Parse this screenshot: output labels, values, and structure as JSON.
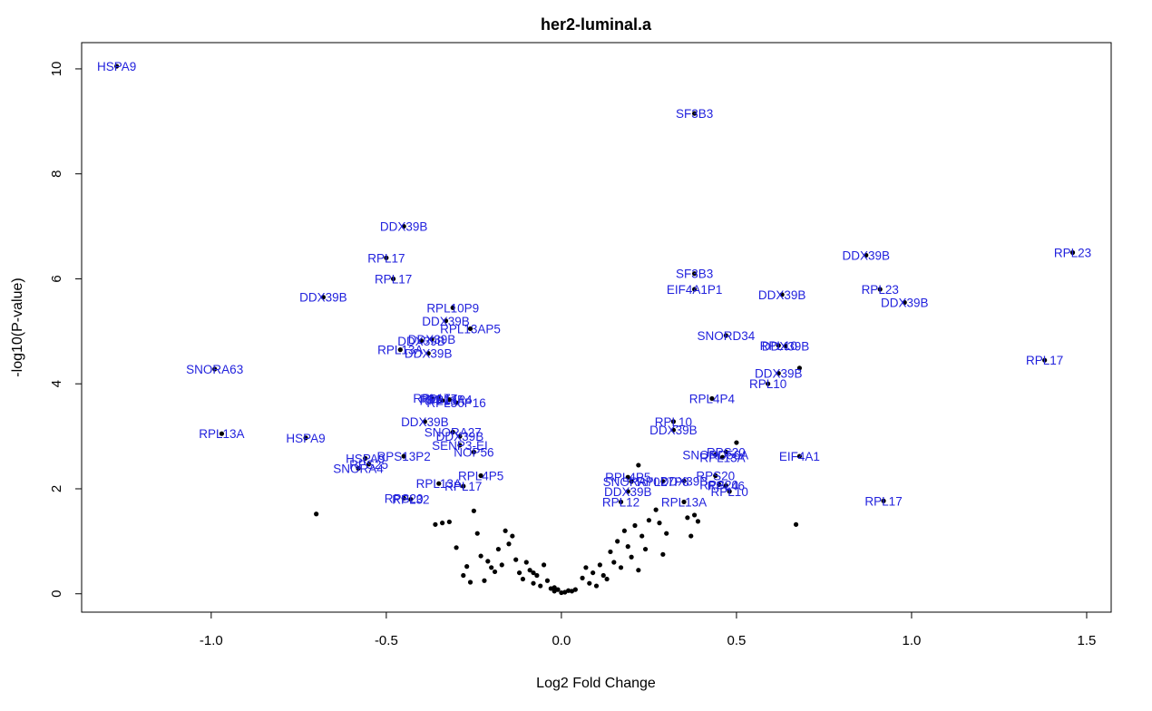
{
  "chart_data": {
    "type": "scatter",
    "title": "her2-luminal.a",
    "xlabel": "Log2 Fold Change",
    "ylabel": "-log10(P-value)",
    "xlim": [
      -1.37,
      1.57
    ],
    "ylim": [
      -0.35,
      10.5
    ],
    "xticks": [
      -1.0,
      -0.5,
      0.0,
      0.5,
      1.0,
      1.5
    ],
    "xtick_labels": [
      "-1.0",
      "-0.5",
      "0.0",
      "0.5",
      "1.0",
      "1.5"
    ],
    "yticks": [
      0,
      2,
      4,
      6,
      8,
      10
    ],
    "ytick_labels": [
      "0",
      "2",
      "4",
      "6",
      "8",
      "10"
    ],
    "grid": false,
    "colors": {
      "point": "#000000",
      "label": "#2222dd"
    },
    "labeled_points": [
      {
        "x": -1.27,
        "y": 10.05,
        "label": "HSPA9"
      },
      {
        "x": 0.38,
        "y": 9.15,
        "label": "SF3B3"
      },
      {
        "x": -0.45,
        "y": 7.0,
        "label": "DDX39B"
      },
      {
        "x": -0.5,
        "y": 6.4,
        "label": "RPL17"
      },
      {
        "x": -0.48,
        "y": 6.0,
        "label": "RPL17"
      },
      {
        "x": -0.68,
        "y": 5.65,
        "label": "DDX39B"
      },
      {
        "x": 0.38,
        "y": 6.1,
        "label": "SF3B3"
      },
      {
        "x": 0.38,
        "y": 5.8,
        "label": "EIF4A1P1"
      },
      {
        "x": 0.87,
        "y": 6.45,
        "label": "DDX39B"
      },
      {
        "x": 1.46,
        "y": 6.5,
        "label": "RPL23"
      },
      {
        "x": 0.91,
        "y": 5.8,
        "label": "RPL23"
      },
      {
        "x": 0.63,
        "y": 5.7,
        "label": "DDX39B"
      },
      {
        "x": 0.98,
        "y": 5.55,
        "label": "DDX39B"
      },
      {
        "x": -0.31,
        "y": 5.45,
        "label": "RPL10P9"
      },
      {
        "x": -0.33,
        "y": 5.2,
        "label": "DDX39B"
      },
      {
        "x": -0.26,
        "y": 5.05,
        "label": "RPL13AP5"
      },
      {
        "x": -0.37,
        "y": 4.85,
        "label": "DDX39B"
      },
      {
        "x": -0.4,
        "y": 4.82,
        "label": "DDX39B"
      },
      {
        "x": -0.46,
        "y": 4.65,
        "label": "RPL13A"
      },
      {
        "x": -0.38,
        "y": 4.58,
        "label": "DDX39B"
      },
      {
        "x": 0.47,
        "y": 4.92,
        "label": "SNORD34"
      },
      {
        "x": 0.62,
        "y": 4.73,
        "label": "RPL10"
      },
      {
        "x": 0.64,
        "y": 4.72,
        "label": "DDX39B"
      },
      {
        "x": 1.38,
        "y": 4.45,
        "label": "RPL17"
      },
      {
        "x": -0.99,
        "y": 4.28,
        "label": "SNORA63"
      },
      {
        "x": 0.62,
        "y": 4.2,
        "label": "DDX39B"
      },
      {
        "x": 0.59,
        "y": 4.0,
        "label": "RPL10"
      },
      {
        "x": -0.37,
        "y": 3.73,
        "label": "RPL17"
      },
      {
        "x": -0.35,
        "y": 3.72,
        "label": "RPL17"
      },
      {
        "x": -0.32,
        "y": 3.7,
        "label": "RPL4P4"
      },
      {
        "x": -0.34,
        "y": 3.68,
        "label": "RPL13A"
      },
      {
        "x": -0.3,
        "y": 3.64,
        "label": "RPL36P16"
      },
      {
        "x": 0.43,
        "y": 3.72,
        "label": "RPL4P4"
      },
      {
        "x": -0.39,
        "y": 3.28,
        "label": "DDX39B"
      },
      {
        "x": 0.32,
        "y": 3.28,
        "label": "RPL10"
      },
      {
        "x": 0.32,
        "y": 3.12,
        "label": "DDX39B"
      },
      {
        "x": -0.31,
        "y": 3.08,
        "label": "SNORA27"
      },
      {
        "x": -0.29,
        "y": 3.0,
        "label": "DDX39B"
      },
      {
        "x": -0.97,
        "y": 3.05,
        "label": "RPL13A"
      },
      {
        "x": -0.73,
        "y": 2.97,
        "label": "HSPA9"
      },
      {
        "x": -0.29,
        "y": 2.83,
        "label": "SENP3-EI"
      },
      {
        "x": -0.25,
        "y": 2.7,
        "label": "NOP56"
      },
      {
        "x": -0.45,
        "y": 2.62,
        "label": "RPS13P2"
      },
      {
        "x": -0.56,
        "y": 2.58,
        "label": "HSPA9"
      },
      {
        "x": -0.55,
        "y": 2.47,
        "label": "RPS25"
      },
      {
        "x": -0.58,
        "y": 2.39,
        "label": "SNORA4"
      },
      {
        "x": 0.47,
        "y": 2.7,
        "label": "RPS20"
      },
      {
        "x": 0.44,
        "y": 2.65,
        "label": "SNORD56A"
      },
      {
        "x": 0.46,
        "y": 2.6,
        "label": "RPL13A"
      },
      {
        "x": 0.68,
        "y": 2.62,
        "label": "EIF4A1"
      },
      {
        "x": -0.23,
        "y": 2.25,
        "label": "RPL4P5"
      },
      {
        "x": -0.35,
        "y": 2.1,
        "label": "RPL13A"
      },
      {
        "x": -0.28,
        "y": 2.05,
        "label": "RPL17"
      },
      {
        "x": 0.19,
        "y": 2.22,
        "label": "RPL4P5"
      },
      {
        "x": 0.2,
        "y": 2.14,
        "label": "SNORA70"
      },
      {
        "x": 0.29,
        "y": 2.14,
        "label": "RPL27P8"
      },
      {
        "x": 0.35,
        "y": 2.15,
        "label": "DDX39B"
      },
      {
        "x": 0.44,
        "y": 2.25,
        "label": "RPS20"
      },
      {
        "x": 0.45,
        "y": 2.08,
        "label": "RPS20"
      },
      {
        "x": 0.47,
        "y": 2.06,
        "label": "RPL46"
      },
      {
        "x": 0.48,
        "y": 1.95,
        "label": "RPL10"
      },
      {
        "x": 0.19,
        "y": 1.95,
        "label": "DDX39B"
      },
      {
        "x": 0.17,
        "y": 1.75,
        "label": "RPL12"
      },
      {
        "x": 0.35,
        "y": 1.75,
        "label": "RPL13A"
      },
      {
        "x": -0.45,
        "y": 1.82,
        "label": "RPS20"
      },
      {
        "x": -0.43,
        "y": 1.8,
        "label": "RPL32"
      },
      {
        "x": 0.92,
        "y": 1.77,
        "label": "RPL17"
      }
    ],
    "unlabeled_points": [
      {
        "x": -0.7,
        "y": 1.52
      },
      {
        "x": 0.67,
        "y": 1.32
      },
      {
        "x": 0.68,
        "y": 4.3
      },
      {
        "x": 0.5,
        "y": 2.88
      },
      {
        "x": 0.22,
        "y": 2.45
      },
      {
        "x": -0.25,
        "y": 1.58
      },
      {
        "x": -0.34,
        "y": 1.35
      },
      {
        "x": -0.36,
        "y": 1.32
      },
      {
        "x": -0.32,
        "y": 1.37
      },
      {
        "x": -0.24,
        "y": 1.15
      },
      {
        "x": -0.3,
        "y": 0.88
      },
      {
        "x": -0.28,
        "y": 0.35
      },
      {
        "x": -0.23,
        "y": 0.72
      },
      {
        "x": -0.22,
        "y": 0.25
      },
      {
        "x": -0.2,
        "y": 0.5
      },
      {
        "x": -0.18,
        "y": 0.85
      },
      {
        "x": -0.17,
        "y": 0.55
      },
      {
        "x": -0.16,
        "y": 1.2
      },
      {
        "x": -0.15,
        "y": 0.95
      },
      {
        "x": -0.14,
        "y": 1.1
      },
      {
        "x": -0.13,
        "y": 0.65
      },
      {
        "x": -0.12,
        "y": 0.4
      },
      {
        "x": -0.11,
        "y": 0.28
      },
      {
        "x": -0.1,
        "y": 0.6
      },
      {
        "x": -0.09,
        "y": 0.45
      },
      {
        "x": -0.08,
        "y": 0.2
      },
      {
        "x": -0.07,
        "y": 0.35
      },
      {
        "x": -0.06,
        "y": 0.15
      },
      {
        "x": -0.05,
        "y": 0.55
      },
      {
        "x": -0.04,
        "y": 0.25
      },
      {
        "x": -0.03,
        "y": 0.1
      },
      {
        "x": -0.02,
        "y": 0.05
      },
      {
        "x": -0.01,
        "y": 0.08
      },
      {
        "x": 0.0,
        "y": 0.02
      },
      {
        "x": 0.01,
        "y": 0.03
      },
      {
        "x": 0.03,
        "y": 0.05
      },
      {
        "x": 0.04,
        "y": 0.08
      },
      {
        "x": 0.06,
        "y": 0.3
      },
      {
        "x": 0.07,
        "y": 0.5
      },
      {
        "x": 0.08,
        "y": 0.2
      },
      {
        "x": 0.09,
        "y": 0.4
      },
      {
        "x": 0.1,
        "y": 0.15
      },
      {
        "x": 0.11,
        "y": 0.55
      },
      {
        "x": 0.12,
        "y": 0.35
      },
      {
        "x": 0.13,
        "y": 0.28
      },
      {
        "x": 0.14,
        "y": 0.8
      },
      {
        "x": 0.15,
        "y": 0.6
      },
      {
        "x": 0.16,
        "y": 1.0
      },
      {
        "x": 0.17,
        "y": 0.5
      },
      {
        "x": 0.18,
        "y": 1.2
      },
      {
        "x": 0.19,
        "y": 0.9
      },
      {
        "x": 0.2,
        "y": 0.7
      },
      {
        "x": 0.21,
        "y": 1.3
      },
      {
        "x": 0.22,
        "y": 0.45
      },
      {
        "x": 0.23,
        "y": 1.1
      },
      {
        "x": 0.24,
        "y": 0.85
      },
      {
        "x": 0.25,
        "y": 1.4
      },
      {
        "x": 0.27,
        "y": 1.6
      },
      {
        "x": 0.28,
        "y": 1.35
      },
      {
        "x": 0.29,
        "y": 0.75
      },
      {
        "x": 0.3,
        "y": 1.15
      },
      {
        "x": 0.36,
        "y": 1.45
      },
      {
        "x": 0.37,
        "y": 1.1
      },
      {
        "x": 0.38,
        "y": 1.5
      },
      {
        "x": 0.39,
        "y": 1.38
      },
      {
        "x": -0.19,
        "y": 0.42
      },
      {
        "x": -0.21,
        "y": 0.62
      },
      {
        "x": -0.26,
        "y": 0.22
      },
      {
        "x": -0.27,
        "y": 0.52
      },
      {
        "x": -0.02,
        "y": 0.12
      },
      {
        "x": 0.02,
        "y": 0.06
      },
      {
        "x": -0.08,
        "y": 0.4
      }
    ]
  }
}
